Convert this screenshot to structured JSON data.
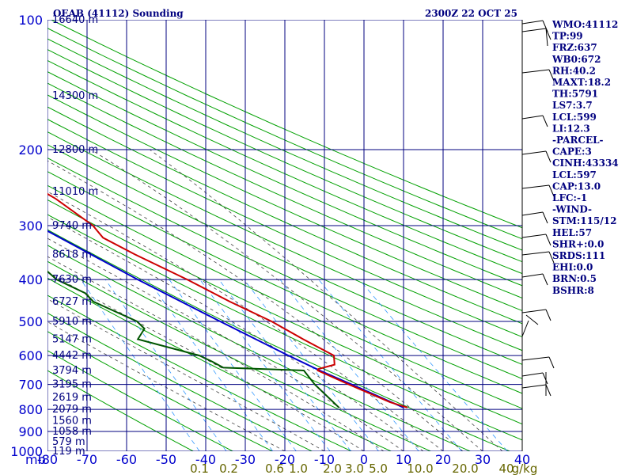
{
  "header": {
    "title": "OEAB (41112) Sounding",
    "datetime": "2300Z 22 OCT 25"
  },
  "stats": [
    "WMO:41112",
    "TP:99",
    "FRZ:637",
    "WB0:672",
    "RH:40.2",
    "MAXT:18.2",
    "TH:5791",
    "LS7:3.7",
    "LCL:599",
    "LI:12.3",
    "-PARCEL-",
    "CAPE:3",
    "CINH:43334",
    "LCL:597",
    "CAP:13.0",
    "LFC:-1",
    "-WIND-",
    "STM:115/12",
    "HEL:57",
    "SHR+:0.0",
    "SRDS:111",
    "EHI:0.0",
    "BRN:0.5",
    "BSHR:8"
  ],
  "colors": {
    "grid": "#00007f",
    "dry_adiabat": "#00a000",
    "moist_adiabat": "#404040",
    "mixing_ratio": "#3399ff",
    "temperature": "#cc0000",
    "dewpoint": "#005500",
    "parcel": "#0000cc",
    "axis_text": "#0000cc",
    "mixing_text": "#666600",
    "stats_text": "#00007f"
  },
  "chart_data": {
    "type": "line",
    "chart": "skew-T log-P",
    "pressure_unit_label": "mb",
    "pressure_levels": [
      100,
      200,
      300,
      400,
      500,
      600,
      700,
      800,
      900,
      1000
    ],
    "temperature_ticks": [
      -80,
      -70,
      -60,
      -50,
      -40,
      -30,
      -20,
      -10,
      0,
      10,
      20,
      30,
      40
    ],
    "mixing_ratio_labels": [
      "0.1",
      "0.2",
      "0.6",
      "1.0",
      "2.0",
      "3.0",
      "5.0",
      "10.0",
      "20.0",
      "40",
      "g/kg"
    ],
    "height_labels": [
      {
        "p": 100,
        "label": "16640 m"
      },
      {
        "p": 150,
        "label": "14300 m"
      },
      {
        "p": 200,
        "label": "12800 m"
      },
      {
        "p": 250,
        "label": "11010 m"
      },
      {
        "p": 300,
        "label": "9740 m"
      },
      {
        "p": 350,
        "label": "8618 m"
      },
      {
        "p": 400,
        "label": "7630 m"
      },
      {
        "p": 450,
        "label": "6727 m"
      },
      {
        "p": 500,
        "label": "5910 m"
      },
      {
        "p": 550,
        "label": "5147 m"
      },
      {
        "p": 600,
        "label": "4442 m"
      },
      {
        "p": 650,
        "label": "3794 m"
      },
      {
        "p": 700,
        "label": "3195 m"
      },
      {
        "p": 750,
        "label": "2619 m"
      },
      {
        "p": 800,
        "label": "2079 m"
      },
      {
        "p": 850,
        "label": "1560 m"
      },
      {
        "p": 900,
        "label": "1058 m"
      },
      {
        "p": 950,
        "label": "579 m"
      },
      {
        "p": 1000,
        "label": "119 m"
      }
    ],
    "temperature": [
      [
        792,
        16.5
      ],
      [
        770,
        12.8
      ],
      [
        700,
        4.6
      ],
      [
        650,
        -1.5
      ],
      [
        645,
        -1.2
      ],
      [
        630,
        3.5
      ],
      [
        600,
        4.5
      ],
      [
        550,
        -1.2
      ],
      [
        500,
        -7.0
      ],
      [
        450,
        -15.0
      ],
      [
        400,
        -23.0
      ],
      [
        350,
        -33.0
      ],
      [
        320,
        -39.0
      ],
      [
        300,
        -40.0
      ],
      [
        260,
        -46.0
      ],
      [
        230,
        -53.0
      ],
      [
        200,
        -57.0
      ],
      [
        170,
        -64.0
      ],
      [
        150,
        -68.0
      ],
      [
        130,
        -73.0
      ],
      [
        110,
        -79.0
      ],
      [
        100,
        -81.0
      ]
    ],
    "dewpoint": [
      [
        792,
        -0.8
      ],
      [
        700,
        -4.0
      ],
      [
        650,
        -5.0
      ],
      [
        640,
        -25.0
      ],
      [
        620,
        -27.0
      ],
      [
        600,
        -29.5
      ],
      [
        550,
        -43.0
      ],
      [
        520,
        -40.0
      ],
      [
        500,
        -41.0
      ],
      [
        450,
        -49.5
      ],
      [
        430,
        -50.5
      ],
      [
        400,
        -56.0
      ],
      [
        350,
        -60.0
      ],
      [
        300,
        -60.0
      ],
      [
        270,
        -63.0
      ],
      [
        230,
        -66.0
      ],
      [
        200,
        -74.0
      ],
      [
        185,
        -76.0
      ],
      [
        160,
        -81.0
      ]
    ],
    "parcel": [
      [
        792,
        15.5
      ],
      [
        700,
        5.3
      ],
      [
        650,
        -1.0
      ],
      [
        600,
        -7.0
      ],
      [
        500,
        -20.0
      ],
      [
        400,
        -35.5
      ],
      [
        300,
        -54.0
      ],
      [
        250,
        -65.0
      ],
      [
        200,
        -76.0
      ],
      [
        170,
        -81.0
      ]
    ]
  }
}
